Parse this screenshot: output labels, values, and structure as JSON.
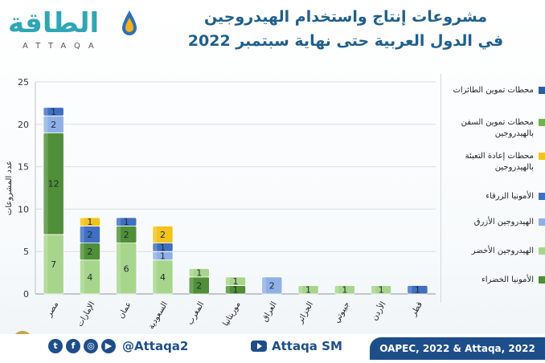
{
  "header": {
    "logo_ar": "الطاقة",
    "logo_en": "ATTAQA",
    "title_line1": "مشروعات إنتاج واستخدام الهيدروجين",
    "title_line2": "في الدول العربية حتى نهاية سبتمبر 2022"
  },
  "colors": {
    "accent": "#1f5f8b",
    "brand": "#2fa6b5",
    "footer": "#1d4e8a"
  },
  "footer": {
    "social_handle": "@Attaqa2",
    "youtube_label": "Attaqa SM",
    "source": "OAPEC, 2022 & Attaqa, 2022",
    "social_icons": [
      "twitter-icon",
      "facebook-icon",
      "instagram-icon",
      "youtube-icon"
    ]
  },
  "chart_data": {
    "type": "bar",
    "stacked": true,
    "ylabel": "عدد المشروعات",
    "ylim": [
      0,
      25
    ],
    "yticks": [
      0,
      5,
      10,
      15,
      20,
      25
    ],
    "grid": true,
    "legend_position": "right",
    "categories": [
      "مصر",
      "الإمارات",
      "عمان",
      "السعودية",
      "المغرب",
      "موريتانيا",
      "العراق",
      "الجزائر",
      "جيبوتي",
      "الأردن",
      "قطر"
    ],
    "series": [
      {
        "name": "الأمونيا الخضراء",
        "color": "#4f8f37",
        "values": [
          0,
          0,
          0,
          0,
          2,
          1,
          0,
          0,
          0,
          0,
          0
        ]
      },
      {
        "name": "الهيدروجين الأخضر",
        "color": "#a7d58c",
        "values": [
          7,
          4,
          6,
          4,
          1,
          1,
          0,
          1,
          1,
          1,
          0
        ]
      },
      {
        "name": "الأمونيا الخضراء",
        "color": "#4f8f37",
        "values": [
          12,
          2,
          2,
          0,
          0,
          0,
          0,
          0,
          0,
          0,
          0
        ]
      },
      {
        "name": "الهيدروجين الأزرق",
        "color": "#8fb0e6",
        "values": [
          2,
          0,
          0,
          1,
          0,
          0,
          2,
          0,
          0,
          0,
          0
        ]
      },
      {
        "name": "الأمونيا الزرقاء",
        "color": "#3f6fc2",
        "values": [
          1,
          2,
          1,
          1,
          0,
          0,
          0,
          0,
          0,
          0,
          1
        ]
      },
      {
        "name": "محطات إعادة التعبئة بالهيدروجين",
        "color": "#f2c31c",
        "values": [
          0,
          1,
          0,
          2,
          0,
          0,
          0,
          0,
          0,
          0,
          0
        ]
      },
      {
        "name": "محطات تموين السفن بالهيدروجين",
        "color": "#6fb34e",
        "values": [
          0,
          0,
          0,
          0,
          0,
          0,
          0,
          0,
          0,
          0,
          0
        ]
      },
      {
        "name": "محطات تموين الطائرات",
        "color": "#2a5e9e",
        "values": [
          0,
          0,
          0,
          0,
          0,
          0,
          0,
          0,
          0,
          0,
          0
        ]
      }
    ],
    "legend": [
      {
        "label": "محطات تموين الطائرات",
        "color": "#2a5e9e"
      },
      {
        "label": "محطات تموين السفن بالهيدروجين",
        "color": "#6fb34e"
      },
      {
        "label": "محطات إعادة التعبئة بالهيدروجين",
        "color": "#f2c31c"
      },
      {
        "label": "الأمونيا الزرقاء",
        "color": "#3f6fc2"
      },
      {
        "label": "الهيدروجين الأزرق",
        "color": "#8fb0e6"
      },
      {
        "label": "الهيدروجين الأخضر",
        "color": "#a7d58c"
      },
      {
        "label": "الأمونيا الخضراء",
        "color": "#4f8f37"
      }
    ]
  }
}
